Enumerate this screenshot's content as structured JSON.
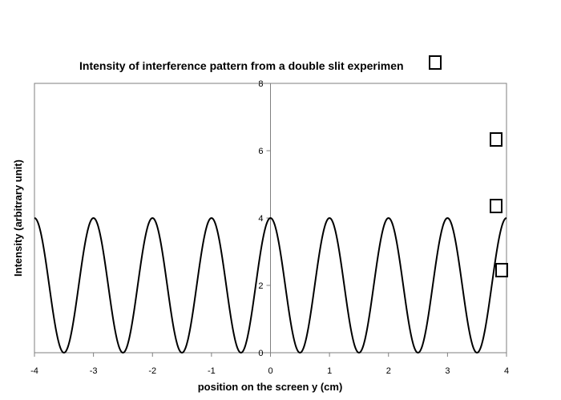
{
  "chart_data": {
    "type": "line",
    "title": "Intensity of interference pattern from a double slit experimen",
    "xlabel": "position on the screen y (cm)",
    "ylabel": "Intensity (arbitrary unit)",
    "xlim": [
      -4,
      4
    ],
    "ylim": [
      0,
      8
    ],
    "x_ticks": [
      "-4",
      "-3",
      "-2",
      "-1",
      "0",
      "1",
      "2",
      "3",
      "4"
    ],
    "y_ticks": [
      "0",
      "2",
      "4",
      "6",
      "8"
    ],
    "grid": false,
    "legend": "none",
    "series": [
      {
        "function": "4*cos^2(pi*y)",
        "x": [
          -4,
          -3.5,
          -3,
          -2.5,
          -2,
          -1.5,
          -1,
          -0.5,
          0,
          0.5,
          1,
          1.5,
          2,
          2.5,
          3,
          3.5,
          4
        ],
        "y": [
          4,
          0,
          4,
          0,
          4,
          0,
          4,
          0,
          4,
          0,
          4,
          0,
          4,
          0,
          4,
          0,
          4
        ]
      }
    ],
    "line_color": "#000000",
    "missing_glyph_boxes": 4
  }
}
